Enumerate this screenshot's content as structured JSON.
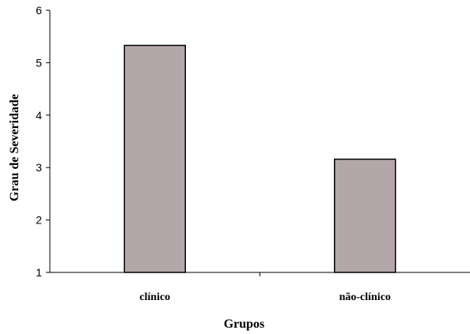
{
  "chart_data": {
    "type": "bar",
    "categories": [
      "clínico",
      "não-clínico"
    ],
    "values": [
      5.33,
      3.16
    ],
    "xlabel": "Grupos",
    "ylabel": "Grau de Severidade",
    "ylim": [
      1,
      6
    ],
    "yticks": [
      1,
      2,
      3,
      4,
      5,
      6
    ],
    "grid": false,
    "legend": "none",
    "bar_color": "#b3a7aa"
  }
}
